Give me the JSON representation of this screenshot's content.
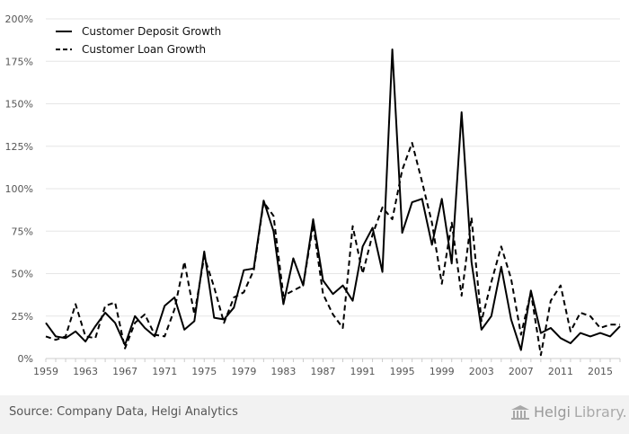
{
  "source_text": "Source: Company Data, Helgi Analytics",
  "brand": {
    "name": "Helgi",
    "suffix": "Library."
  },
  "colors": {
    "background": "#f2f2f2",
    "plot": "#ffffff",
    "line": "#000000",
    "grid": "#e6e6e6",
    "tick_text": "#555555"
  },
  "chart_data": {
    "type": "line",
    "title": "",
    "xlabel": "",
    "ylabel": "",
    "legend_position": "top-left",
    "grid": true,
    "xlim": [
      1959,
      2017
    ],
    "ylim": [
      0,
      200
    ],
    "x_tick_labels": [
      "1959",
      "1963",
      "1967",
      "1971",
      "1975",
      "1979",
      "1983",
      "1987",
      "1991",
      "1995",
      "1999",
      "2003",
      "2007",
      "2011",
      "2015"
    ],
    "y_tick_labels": [
      "0%",
      "25%",
      "50%",
      "75%",
      "100%",
      "125%",
      "150%",
      "175%",
      "200%"
    ],
    "y_tick_values": [
      0,
      25,
      50,
      75,
      100,
      125,
      150,
      175,
      200
    ],
    "x": [
      1959,
      1960,
      1961,
      1962,
      1963,
      1964,
      1965,
      1966,
      1967,
      1968,
      1969,
      1970,
      1971,
      1972,
      1973,
      1974,
      1975,
      1976,
      1977,
      1978,
      1979,
      1980,
      1981,
      1982,
      1983,
      1984,
      1985,
      1986,
      1987,
      1988,
      1989,
      1990,
      1991,
      1992,
      1993,
      1994,
      1995,
      1996,
      1997,
      1998,
      1999,
      2000,
      2001,
      2002,
      2003,
      2004,
      2005,
      2006,
      2007,
      2008,
      2009,
      2010,
      2011,
      2012,
      2013,
      2014,
      2015,
      2016,
      2017
    ],
    "series": [
      {
        "name": "Customer Deposit Growth",
        "style": "solid",
        "values": [
          21,
          13,
          12,
          16,
          10,
          19,
          27,
          21,
          8,
          25,
          18,
          13,
          31,
          36,
          17,
          22,
          63,
          24,
          23,
          30,
          52,
          53,
          93,
          75,
          32,
          59,
          43,
          82,
          46,
          38,
          43,
          34,
          66,
          77,
          51,
          182,
          74,
          92,
          94,
          67,
          94,
          56,
          145,
          57,
          17,
          25,
          54,
          23,
          5,
          40,
          15,
          18,
          12,
          9,
          15,
          13,
          15,
          13,
          19
        ]
      },
      {
        "name": "Customer Loan Growth",
        "style": "dashed",
        "values": [
          13,
          11,
          13,
          32,
          13,
          12,
          31,
          33,
          6,
          21,
          26,
          14,
          13,
          29,
          57,
          26,
          60,
          42,
          21,
          36,
          39,
          52,
          92,
          84,
          37,
          40,
          43,
          79,
          38,
          26,
          18,
          78,
          50,
          73,
          89,
          82,
          111,
          127,
          104,
          80,
          44,
          80,
          37,
          83,
          22,
          45,
          66,
          47,
          14,
          39,
          2,
          34,
          43,
          16,
          27,
          25,
          18,
          20,
          20
        ]
      }
    ]
  }
}
